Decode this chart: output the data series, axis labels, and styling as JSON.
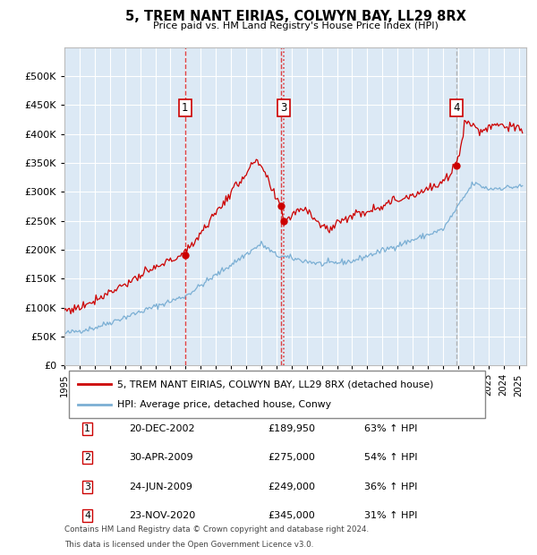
{
  "title": "5, TREM NANT EIRIAS, COLWYN BAY, LL29 8RX",
  "subtitle": "Price paid vs. HM Land Registry's House Price Index (HPI)",
  "legend_line1": "5, TREM NANT EIRIAS, COLWYN BAY, LL29 8RX (detached house)",
  "legend_line2": "HPI: Average price, detached house, Conwy",
  "transactions": [
    {
      "num": 1,
      "date": "20-DEC-2002",
      "price": 189950,
      "pct": "63%",
      "year": 2002.97
    },
    {
      "num": 2,
      "date": "30-APR-2009",
      "price": 275000,
      "pct": "54%",
      "year": 2009.33
    },
    {
      "num": 3,
      "date": "24-JUN-2009",
      "price": 249000,
      "pct": "36%",
      "year": 2009.48
    },
    {
      "num": 4,
      "date": "23-NOV-2020",
      "price": 345000,
      "pct": "31%",
      "year": 2020.9
    }
  ],
  "footer1": "Contains HM Land Registry data © Crown copyright and database right 2024.",
  "footer2": "This data is licensed under the Open Government Licence v3.0.",
  "plot_bg_color": "#dce9f5",
  "red_line_color": "#cc0000",
  "blue_line_color": "#7bafd4",
  "marker_color": "#cc0000",
  "ylim": [
    0,
    550000
  ],
  "yticks": [
    0,
    50000,
    100000,
    150000,
    200000,
    250000,
    300000,
    350000,
    400000,
    450000,
    500000
  ],
  "xstart": 1995.0,
  "xend": 2025.5
}
